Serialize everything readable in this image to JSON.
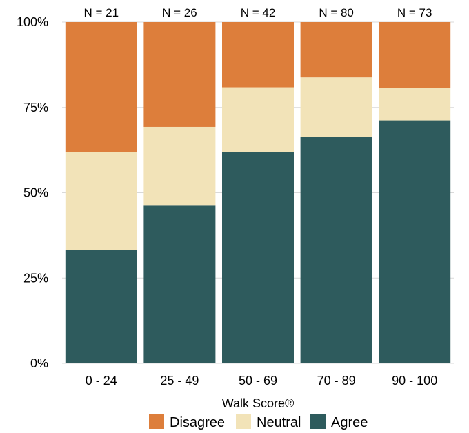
{
  "chart_data": {
    "type": "bar",
    "stacked": true,
    "categories": [
      "0 - 24",
      "25 - 49",
      "50 - 69",
      "70 - 89",
      "90 - 100"
    ],
    "n_labels": [
      "N = 21",
      "N = 26",
      "N = 42",
      "N = 80",
      "N = 73"
    ],
    "series": [
      {
        "name": "Agree",
        "color": "#2e5b5d",
        "values": [
          0.333,
          0.462,
          0.619,
          0.663,
          0.712
        ]
      },
      {
        "name": "Neutral",
        "color": "#f2e3b8",
        "values": [
          0.286,
          0.231,
          0.19,
          0.175,
          0.096
        ]
      },
      {
        "name": "Disagree",
        "color": "#dd7e3b",
        "values": [
          0.381,
          0.307,
          0.191,
          0.162,
          0.192
        ]
      }
    ],
    "legend_order": [
      "Disagree",
      "Neutral",
      "Agree"
    ],
    "xlabel": "Walk Score®",
    "ylabel": "",
    "ylim": [
      0,
      1
    ],
    "yticks": [
      0,
      0.25,
      0.5,
      0.75,
      1
    ],
    "ytick_labels": [
      "0%",
      "25%",
      "50%",
      "75%",
      "100%"
    ],
    "grid": true,
    "legend_position": "bottom"
  }
}
